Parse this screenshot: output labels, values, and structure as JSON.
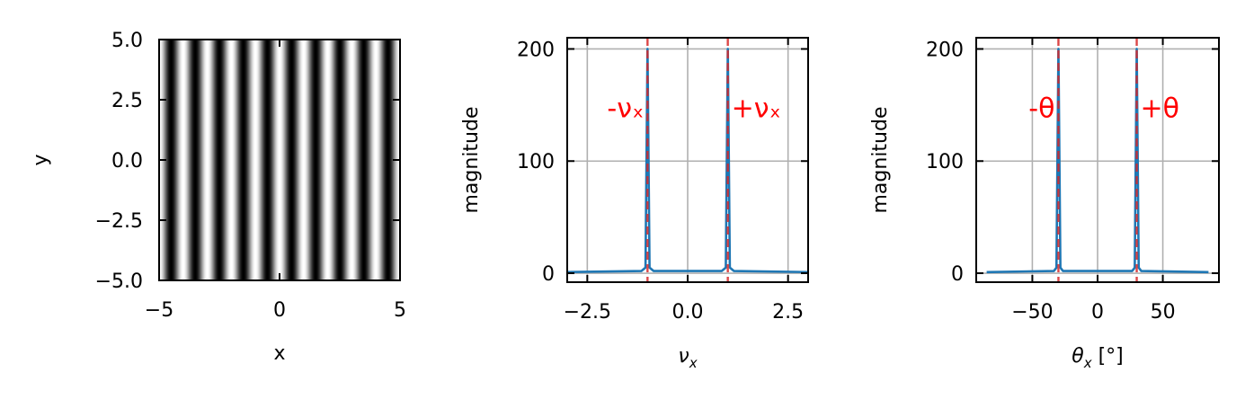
{
  "chart_data": [
    {
      "type": "heatmap",
      "description_colormap": "gray",
      "xlabel": "x",
      "ylabel": "y",
      "xlim": [
        -5,
        5
      ],
      "ylim": [
        -5,
        5
      ],
      "xticks": [
        -5,
        0,
        5
      ],
      "xtick_labels": [
        "−5",
        "0",
        "5"
      ],
      "yticks": [
        5,
        2.5,
        0,
        -2.5,
        -5
      ],
      "ytick_labels": [
        "5.0",
        "2.5",
        "0.0",
        "−2.5",
        "−5.0"
      ],
      "pattern": {
        "kind": "cosine_fringes_vertical",
        "frequency": 1,
        "phase": 0
      }
    },
    {
      "type": "line",
      "xlabel": "ν",
      "xlabel_sub": "x",
      "ylabel": "magnitude",
      "xlim": [
        -3,
        3
      ],
      "ylim": [
        -8,
        210
      ],
      "xticks": [
        -2.5,
        0,
        2.5
      ],
      "xtick_labels": [
        "−2.5",
        "0.0",
        "2.5"
      ],
      "yticks": [
        0,
        100,
        200
      ],
      "ytick_labels": [
        "0",
        "100",
        "200"
      ],
      "grid": true,
      "x": [
        -3.0,
        -1.15,
        -1.05,
        -1.0,
        -0.95,
        -0.85,
        0.85,
        0.95,
        1.0,
        1.05,
        1.15,
        3.0
      ],
      "y": [
        1,
        2,
        5,
        200,
        5,
        2,
        2,
        5,
        200,
        5,
        2,
        1
      ],
      "line_color": "#1f77b4",
      "vlines": [
        -1,
        1
      ],
      "vline_color": "#d62728",
      "annotations": [
        {
          "text": "-νₓ",
          "x": -1,
          "y": 148,
          "align": "right"
        },
        {
          "text": "+νₓ",
          "x": 1,
          "y": 148,
          "align": "left"
        }
      ]
    },
    {
      "type": "line",
      "xlabel": "θ",
      "xlabel_sub": "x",
      "xlabel_suffix": " [°]",
      "ylabel": "magnitude",
      "xlim": [
        -93,
        93
      ],
      "ylim": [
        -8,
        210
      ],
      "xticks": [
        -50,
        0,
        50
      ],
      "xtick_labels": [
        "−50",
        "0",
        "50"
      ],
      "yticks": [
        0,
        100,
        200
      ],
      "ytick_labels": [
        "0",
        "100",
        "200"
      ],
      "grid": true,
      "x": [
        -85,
        -33.5,
        -31.5,
        -30,
        -28.5,
        -26.5,
        26.5,
        28.5,
        30,
        31.5,
        33.5,
        85
      ],
      "y": [
        1,
        2,
        5,
        200,
        5,
        2,
        2,
        5,
        200,
        5,
        2,
        1
      ],
      "line_color": "#1f77b4",
      "vlines": [
        -30,
        30
      ],
      "vline_color": "#d62728",
      "annotations": [
        {
          "text": "-θ",
          "x": -30,
          "y": 148,
          "align": "right"
        },
        {
          "text": "+θ",
          "x": 30,
          "y": 148,
          "align": "left"
        }
      ]
    }
  ]
}
